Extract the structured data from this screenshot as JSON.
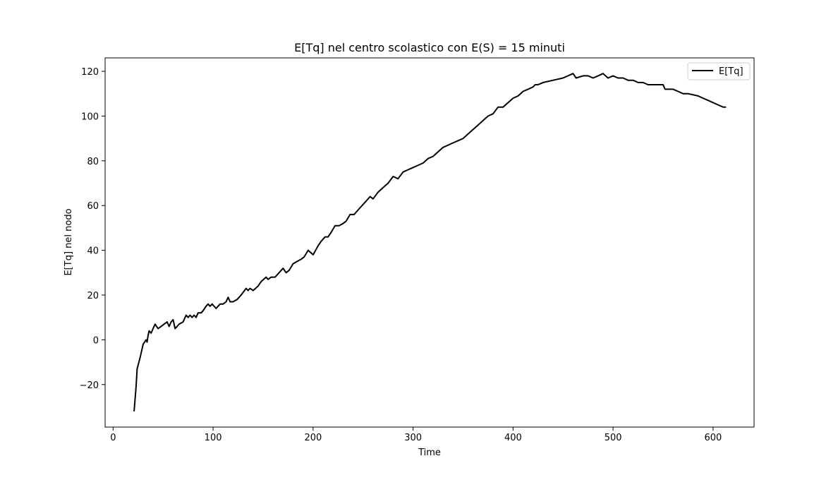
{
  "chart_data": {
    "type": "line",
    "title": "E[Tq] nel centro scolastico con E(S) = 15 minuti",
    "xlabel": "Time",
    "ylabel": "E[Tq] nel nodo",
    "xlim": [
      -8,
      641
    ],
    "ylim": [
      -39,
      126
    ],
    "xticks": [
      0,
      100,
      200,
      300,
      400,
      500,
      600
    ],
    "yticks": [
      -20,
      0,
      20,
      40,
      60,
      80,
      100,
      120
    ],
    "grid": false,
    "legend": "top-right",
    "line_color": "#000000",
    "series": [
      {
        "name": "E[Tq]",
        "x": [
          21,
          23,
          24,
          27,
          30,
          33,
          34,
          35,
          36,
          38,
          40,
          42,
          45,
          48,
          51,
          54,
          56,
          58,
          60,
          62,
          64,
          66,
          70,
          73,
          75,
          77,
          79,
          81,
          83,
          85,
          88,
          90,
          93,
          95,
          97,
          99,
          103,
          107,
          110,
          113,
          115,
          117,
          120,
          124,
          128,
          133,
          135,
          137,
          140,
          145,
          148,
          153,
          155,
          158,
          162,
          166,
          170,
          173,
          176,
          180,
          184,
          188,
          191,
          195,
          200,
          205,
          208,
          212,
          215,
          218,
          222,
          226,
          230,
          233,
          237,
          241,
          245,
          249,
          253,
          257,
          260,
          265,
          270,
          275,
          280,
          285,
          290,
          295,
          300,
          305,
          310,
          315,
          320,
          325,
          330,
          335,
          340,
          345,
          350,
          355,
          360,
          365,
          370,
          375,
          380,
          385,
          390,
          395,
          400,
          405,
          410,
          415,
          420,
          422,
          425,
          430,
          440,
          450,
          460,
          463,
          470,
          475,
          480,
          485,
          490,
          495,
          500,
          505,
          510,
          515,
          520,
          525,
          530,
          535,
          540,
          545,
          550,
          552,
          560,
          565,
          570,
          575,
          585,
          590,
          595,
          600,
          605,
          610,
          613
        ],
        "y": [
          -32,
          -21,
          -13,
          -8,
          -2,
          0,
          -1,
          2,
          4,
          3,
          5,
          7,
          5,
          6,
          7,
          8,
          6,
          8,
          9,
          5,
          6,
          7,
          8,
          11,
          10,
          11,
          10,
          11,
          10,
          12,
          12,
          13,
          15,
          16,
          15,
          16,
          14,
          16,
          16,
          17,
          19,
          17,
          17,
          18,
          20,
          23,
          22,
          23,
          22,
          24,
          26,
          28,
          27,
          28,
          28,
          30,
          32,
          30,
          31,
          34,
          35,
          36,
          37,
          40,
          38,
          42,
          44,
          46,
          46,
          48,
          51,
          51,
          52,
          53,
          56,
          56,
          58,
          60,
          62,
          64,
          63,
          66,
          68,
          70,
          73,
          72,
          75,
          76,
          77,
          78,
          79,
          81,
          82,
          84,
          86,
          87,
          88,
          89,
          90,
          92,
          94,
          96,
          98,
          100,
          101,
          104,
          104,
          106,
          108,
          109,
          111,
          112,
          113,
          114,
          114,
          115,
          116,
          117,
          119,
          117,
          118,
          118,
          117,
          118,
          119,
          117,
          118,
          117,
          117,
          116,
          116,
          115,
          115,
          114,
          114,
          114,
          114,
          112,
          112,
          111,
          110,
          110,
          109,
          108,
          107,
          106,
          105,
          104,
          104
        ]
      }
    ]
  }
}
